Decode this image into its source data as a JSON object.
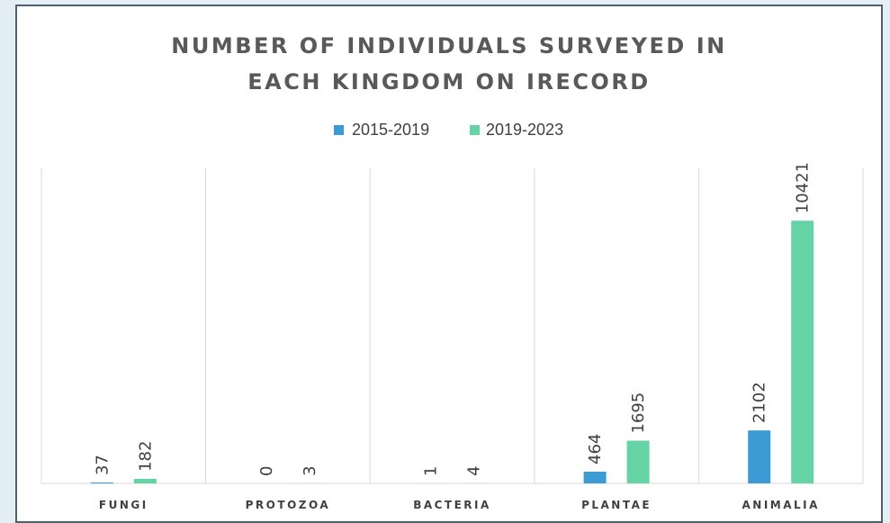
{
  "chart_data": {
    "type": "bar",
    "title_lines": [
      "NUMBER OF INDIVIDUALS SURVEYED IN",
      "EACH KINGDOM ON IRECORD"
    ],
    "categories": [
      "FUNGI",
      "PROTOZOA",
      "BACTERIA",
      "PLANTAE",
      "ANIMALIA"
    ],
    "series": [
      {
        "name": "2015-2019",
        "color": "#3d9bd3",
        "values": [
          37,
          0,
          1,
          464,
          2102
        ]
      },
      {
        "name": "2019-2023",
        "color": "#66d3a4",
        "values": [
          182,
          3,
          4,
          1695,
          10421
        ]
      }
    ],
    "data_labels": [
      "37",
      "0",
      "1",
      "464",
      "2102",
      "182",
      "3",
      "4",
      "1695",
      "10421"
    ],
    "ylim": [
      0,
      12500
    ],
    "legend_position": "top",
    "grid": "vertical category separators"
  }
}
